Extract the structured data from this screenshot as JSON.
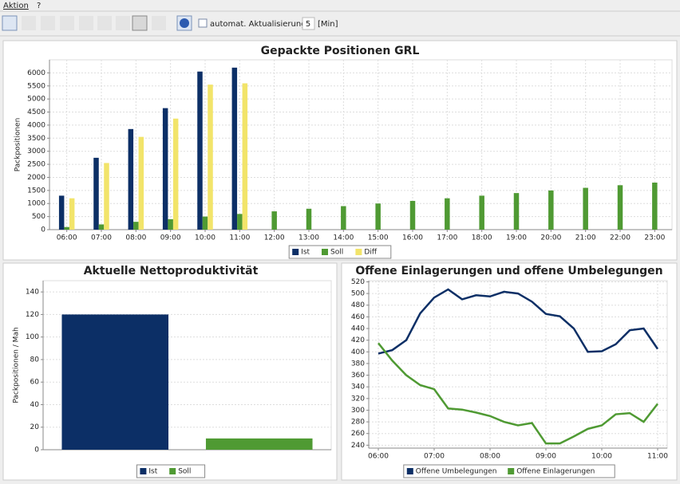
{
  "menu": [
    "Aktion",
    "?"
  ],
  "toolbar": {
    "checkbox_label": "automat. Aktualisierung",
    "interval": "5",
    "unit": "[Min]"
  },
  "chart_data": [
    {
      "type": "bar",
      "title": "Gepackte Positionen GRL",
      "ylabel": "Packpositionen",
      "categories": [
        "06:00",
        "07:00",
        "08:00",
        "09:00",
        "10:00",
        "11:00",
        "12:00",
        "13:00",
        "14:00",
        "15:00",
        "16:00",
        "17:00",
        "18:00",
        "19:00",
        "20:00",
        "21:00",
        "22:00",
        "23:00"
      ],
      "series": [
        {
          "name": "Ist",
          "color": "#0c2f66",
          "values": [
            1300,
            2750,
            3850,
            4650,
            6050,
            6200,
            null,
            null,
            null,
            null,
            null,
            null,
            null,
            null,
            null,
            null,
            null,
            null
          ]
        },
        {
          "name": "Soll",
          "color": "#4f9a33",
          "values": [
            100,
            200,
            300,
            400,
            500,
            600,
            700,
            800,
            900,
            1000,
            1100,
            1200,
            1300,
            1400,
            1500,
            1600,
            1700,
            1800
          ]
        },
        {
          "name": "Diff",
          "color": "#f2e46a",
          "values": [
            1200,
            2550,
            3550,
            4250,
            5550,
            5600,
            null,
            null,
            null,
            null,
            null,
            null,
            null,
            null,
            null,
            null,
            null,
            null
          ]
        }
      ],
      "ylim": [
        0,
        6500
      ],
      "yticks": [
        0,
        500,
        1000,
        1500,
        2000,
        2500,
        3000,
        3500,
        4000,
        4500,
        5000,
        5500,
        6000
      ],
      "grid": true
    },
    {
      "type": "bar",
      "title": "Aktuelle Nettoproduktivität",
      "ylabel": "Packpositionen / Mah",
      "series": [
        {
          "name": "Ist",
          "color": "#0c2f66",
          "values": [
            120
          ]
        },
        {
          "name": "Soll",
          "color": "#4f9a33",
          "values": [
            10
          ]
        }
      ],
      "ylim": [
        0,
        150
      ],
      "yticks": [
        0,
        20,
        40,
        60,
        80,
        100,
        120,
        140
      ],
      "grid": true
    },
    {
      "type": "line",
      "title": "Offene Einlagerungen und offene Umbelegungen",
      "categories": [
        "06:00",
        null,
        null,
        null,
        "07:00",
        null,
        null,
        null,
        "08:00",
        null,
        null,
        null,
        "09:00",
        null,
        null,
        null,
        "10:00",
        null,
        null,
        null,
        "11:00"
      ],
      "series": [
        {
          "name": "Offene Umbelegungen",
          "color": "#0c2f66",
          "values": [
            397,
            403,
            420,
            466,
            493,
            507,
            490,
            497,
            495,
            503,
            500,
            486,
            465,
            461,
            440,
            400,
            401,
            413,
            437,
            440,
            405
          ]
        },
        {
          "name": "Offene Einlagerungen",
          "color": "#4f9a33",
          "values": [
            415,
            385,
            360,
            343,
            336,
            303,
            301,
            296,
            290,
            280,
            274,
            278,
            243,
            243,
            255,
            268,
            274,
            293,
            295,
            280,
            311
          ]
        }
      ],
      "ylim": [
        235,
        522
      ],
      "yticks": [
        240,
        260,
        280,
        300,
        320,
        340,
        360,
        380,
        400,
        420,
        440,
        460,
        480,
        500,
        520
      ],
      "grid": true
    }
  ]
}
